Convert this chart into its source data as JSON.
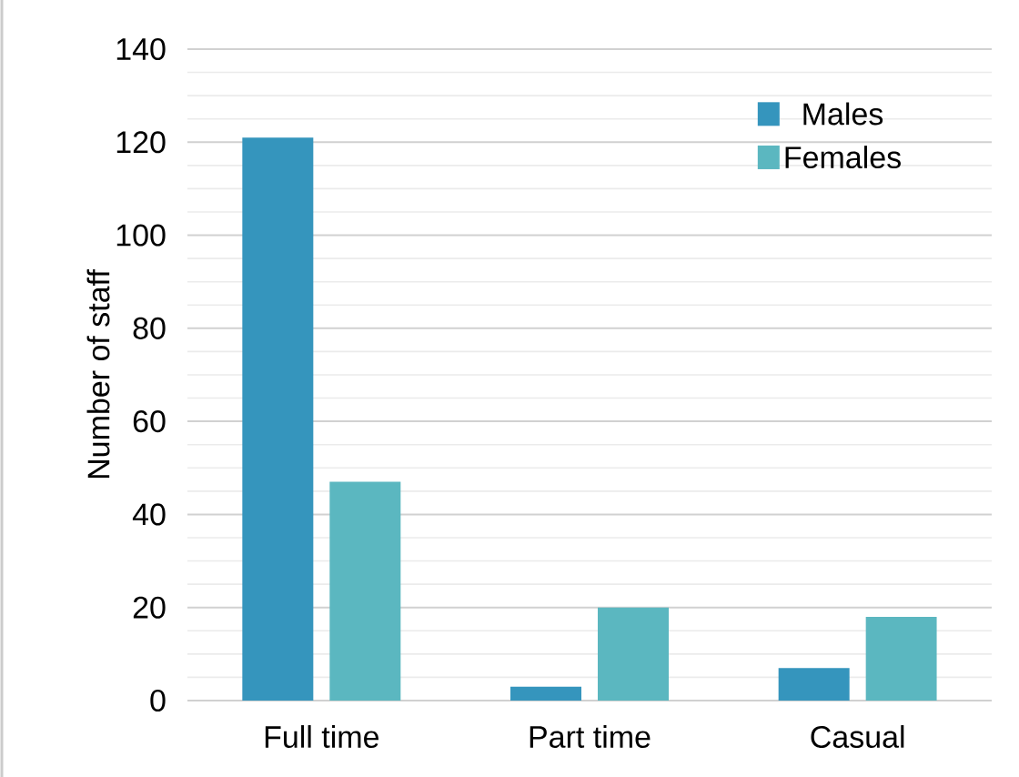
{
  "chart_data": {
    "type": "bar",
    "ylabel": "Number of staff",
    "categories": [
      "Full time",
      "Part time",
      "Casual"
    ],
    "series": [
      {
        "name": "Males",
        "color": "#3595bd",
        "values": [
          121,
          3,
          7
        ]
      },
      {
        "name": "Females",
        "color": "#5bb7c0",
        "values": [
          47,
          20,
          18
        ]
      }
    ],
    "ylim": [
      0,
      140
    ],
    "yticks": [
      0,
      20,
      40,
      60,
      80,
      100,
      120,
      140
    ],
    "grid": "y",
    "legend": "top right"
  }
}
